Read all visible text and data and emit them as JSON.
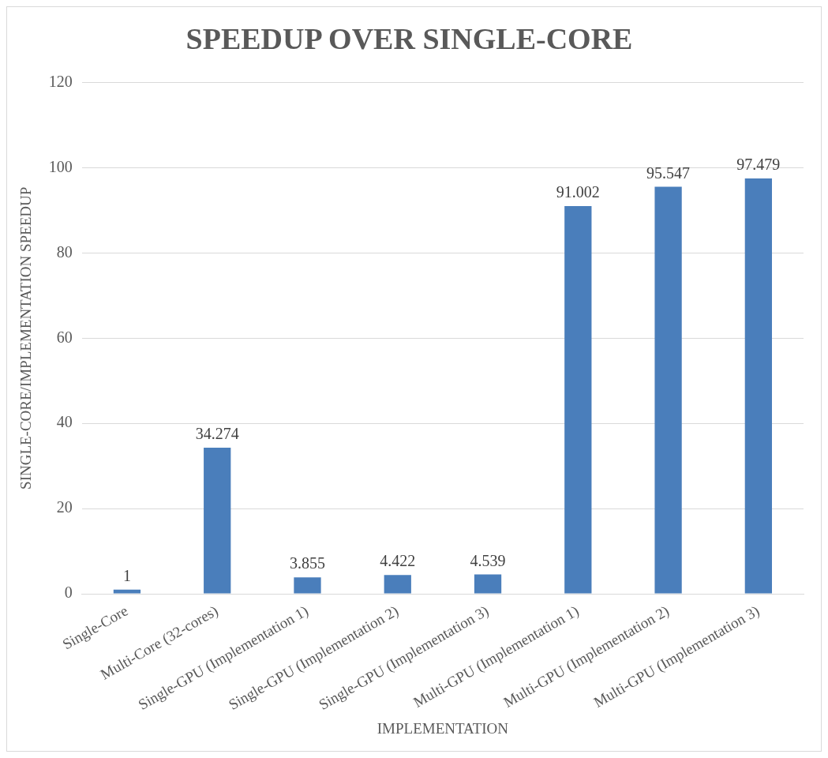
{
  "chart_data": {
    "type": "bar",
    "title": "SPEEDUP OVER SINGLE-CORE",
    "xlabel": "IMPLEMENTATION",
    "ylabel": "SINGLE-CORE/IMPLEMENTATION SPEEDUP",
    "categories": [
      "Single-Core",
      "Multi-Core (32-cores)",
      "Single-GPU (Implementation 1)",
      "Single-GPU (Implementation 2)",
      "Single-GPU (Implementation 3)",
      "Multi-GPU (Implementation 1)",
      "Multi-GPU (Implementation 2)",
      "Multi-GPU (Implementation 3)"
    ],
    "values": [
      1,
      34.274,
      3.855,
      4.422,
      4.539,
      91.002,
      95.547,
      97.479
    ],
    "color": "#4a7ebb",
    "ylim": [
      0,
      120
    ],
    "yticks": [
      0,
      20,
      40,
      60,
      80,
      100,
      120
    ],
    "grid": "y",
    "data_labels": true,
    "legend": false
  }
}
